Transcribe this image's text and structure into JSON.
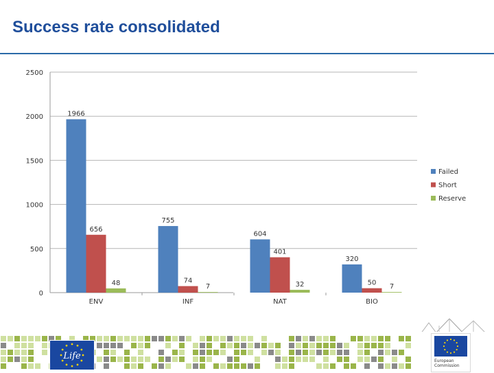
{
  "slide": {
    "title": "Success rate consolidated"
  },
  "footer": {
    "life_logo_text": "Life",
    "ec_text_line1": "European",
    "ec_text_line2": "Commission",
    "colors": {
      "rule": "#2a6aa8",
      "tile_dark": "#9ab54a",
      "tile_light": "#cfe0a0",
      "tile_gray": "#8a8a8a",
      "flag_blue": "#1a47a0",
      "star_yellow": "#f4d20a"
    }
  },
  "chart_data": {
    "type": "bar",
    "categories": [
      "ENV",
      "INF",
      "NAT",
      "BIO"
    ],
    "series": [
      {
        "name": "Failed",
        "color": "#4f81bd",
        "values": [
          1966,
          755,
          604,
          320
        ]
      },
      {
        "name": "Short",
        "color": "#c0504d",
        "values": [
          656,
          74,
          401,
          50
        ]
      },
      {
        "name": "Reserve",
        "color": "#9bbb59",
        "values": [
          48,
          7,
          32,
          7
        ]
      }
    ],
    "ylim": [
      0,
      2500
    ],
    "yticks": [
      0,
      500,
      1000,
      1500,
      2000,
      2500
    ],
    "ytick_labels": [
      "0",
      "500",
      "1000",
      "1500",
      "2000",
      "2500"
    ],
    "grid": true,
    "legend": "right",
    "title": "",
    "xlabel": "",
    "ylabel": ""
  }
}
